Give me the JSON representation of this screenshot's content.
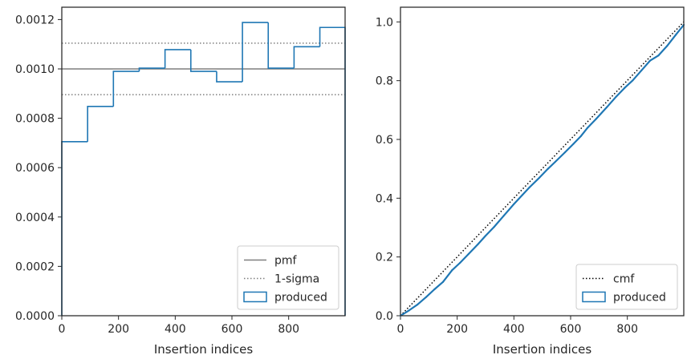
{
  "chart_data": [
    {
      "type": "histogram-step",
      "xlabel": "Insertion indices",
      "ylabel": "",
      "xlim": [
        0,
        999
      ],
      "ylim": [
        0,
        0.00125
      ],
      "xticks": [
        "0",
        "200",
        "400",
        "600",
        "800"
      ],
      "yticks": [
        "0.0000",
        "0.0002",
        "0.0004",
        "0.0006",
        "0.0008",
        "0.0010",
        "0.0012"
      ],
      "bin_edges": [
        0,
        91,
        182,
        273,
        364,
        455,
        546,
        637,
        728,
        819,
        910,
        999
      ],
      "values": [
        0.000705,
        0.000848,
        0.00099,
        0.001003,
        0.001078,
        0.00099,
        0.000948,
        0.001188,
        0.001003,
        0.00109,
        0.001168
      ],
      "pmf": 0.001,
      "sigma_upper": 0.0011045,
      "sigma_lower": 0.0008955,
      "legend_position": "lower right",
      "legend": [
        {
          "label": "pmf",
          "style": "solid",
          "color": "#7f7f7f"
        },
        {
          "label": "1-sigma",
          "style": "dotted",
          "color": "#7f7f7f"
        },
        {
          "label": "produced",
          "style": "patch",
          "color": "#1f77b4"
        }
      ]
    },
    {
      "type": "line",
      "xlabel": "Insertion indices",
      "ylabel": "",
      "xlim": [
        0,
        999
      ],
      "ylim": [
        0,
        1.05
      ],
      "xticks": [
        "0",
        "200",
        "400",
        "600",
        "800"
      ],
      "yticks": [
        "0.0",
        "0.2",
        "0.4",
        "0.6",
        "0.8",
        "1.0"
      ],
      "series": [
        {
          "name": "cmf",
          "style": "dotted",
          "color": "#000000",
          "x": [
            0,
            999
          ],
          "y": [
            0,
            1.0
          ]
        },
        {
          "name": "produced",
          "style": "solid",
          "color": "#1f77b4",
          "x": [
            0,
            30,
            60,
            91,
            120,
            150,
            182,
            210,
            240,
            273,
            300,
            330,
            364,
            400,
            430,
            455,
            490,
            520,
            546,
            580,
            610,
            637,
            660,
            690,
            728,
            760,
            790,
            819,
            850,
            880,
            910,
            940,
            970,
            999
          ],
          "y": [
            0,
            0.018,
            0.038,
            0.064,
            0.09,
            0.115,
            0.155,
            0.18,
            0.21,
            0.243,
            0.272,
            0.302,
            0.34,
            0.38,
            0.411,
            0.437,
            0.47,
            0.5,
            0.524,
            0.556,
            0.585,
            0.612,
            0.64,
            0.67,
            0.71,
            0.745,
            0.775,
            0.801,
            0.835,
            0.868,
            0.886,
            0.918,
            0.955,
            0.99
          ]
        }
      ],
      "legend_position": "lower right",
      "legend": [
        {
          "label": "cmf",
          "style": "dotted",
          "color": "#000000"
        },
        {
          "label": "produced",
          "style": "patch",
          "color": "#1f77b4"
        }
      ]
    }
  ]
}
